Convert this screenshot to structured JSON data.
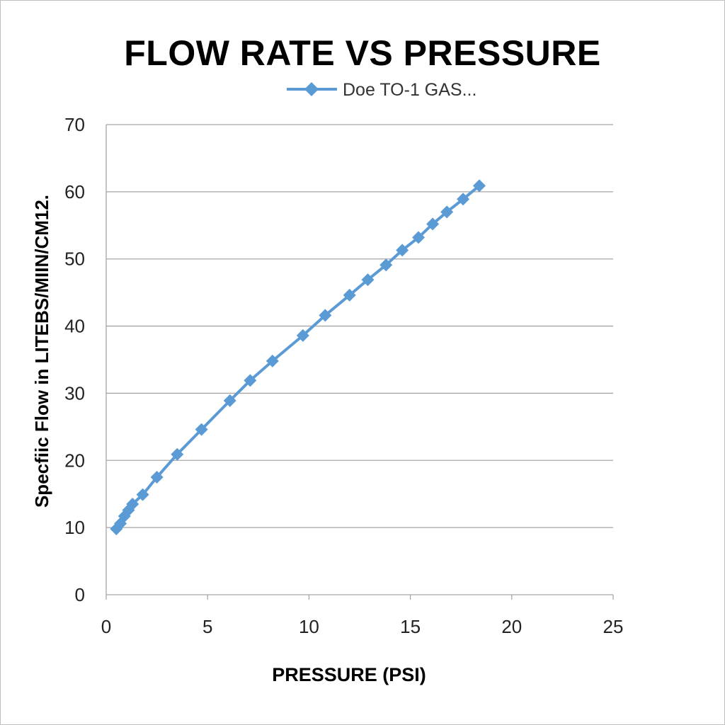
{
  "chart_data": {
    "type": "line",
    "title": "FLOW RATE VS PRESSURE",
    "xlabel": "PRESSURE (PSI)",
    "ylabel": "Specfiic Flow in LITEBS/MIIN/CM12.",
    "xlim": [
      0,
      25
    ],
    "ylim": [
      0,
      70
    ],
    "xticks": [
      0,
      5,
      10,
      15,
      20,
      25
    ],
    "yticks": [
      0,
      10,
      20,
      30,
      40,
      50,
      60,
      70
    ],
    "grid": "horizontal",
    "legend": "top-center",
    "colors": {
      "series": "#5b9bd5",
      "grid": "#a6a6a6",
      "axis": "#a6a6a6"
    },
    "series": [
      {
        "name": "Doe TO-1 GAS...",
        "marker": "diamond",
        "x": [
          0.5,
          0.7,
          0.9,
          1.1,
          1.3,
          1.8,
          2.5,
          3.5,
          4.7,
          6.1,
          7.1,
          8.2,
          9.7,
          10.8,
          12.0,
          12.9,
          13.8,
          14.6,
          15.4,
          16.1,
          16.8,
          17.6,
          18.4
        ],
        "y": [
          9.8,
          10.6,
          11.7,
          12.6,
          13.5,
          14.9,
          17.5,
          20.9,
          24.6,
          28.9,
          31.9,
          34.8,
          38.6,
          41.6,
          44.6,
          46.9,
          49.1,
          51.3,
          53.2,
          55.2,
          57.0,
          58.9,
          60.9
        ]
      }
    ]
  }
}
